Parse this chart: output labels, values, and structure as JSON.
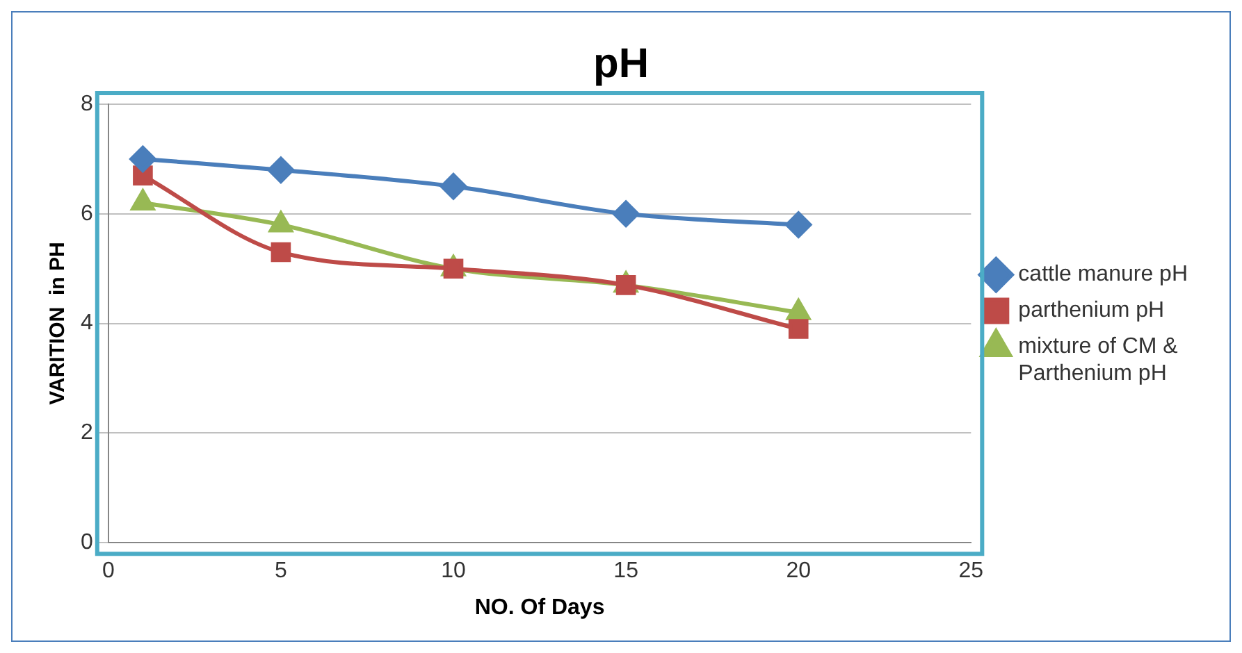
{
  "chart_data": {
    "type": "line",
    "title": "pH",
    "xlabel": "NO. Of Days",
    "ylabel": "VARITION  in PH",
    "x": [
      1,
      5,
      10,
      15,
      20
    ],
    "series": [
      {
        "name": "cattle manure pH",
        "color": "#4a7ebb",
        "marker": "diamond",
        "values": [
          7.0,
          6.8,
          6.5,
          6.0,
          5.8
        ]
      },
      {
        "name": "parthenium pH",
        "color": "#be4b48",
        "marker": "square",
        "values": [
          6.7,
          5.3,
          5.0,
          4.7,
          3.9
        ]
      },
      {
        "name": "mixture of CM & Parthenium pH",
        "color": "#98b954",
        "marker": "triangle",
        "values": [
          6.2,
          5.8,
          5.0,
          4.7,
          4.2
        ]
      }
    ],
    "xlim": [
      0,
      25
    ],
    "xticks": [
      0,
      5,
      10,
      15,
      20,
      25
    ],
    "ylim": [
      0,
      8
    ],
    "yticks": [
      0,
      2,
      4,
      6,
      8
    ],
    "grid": "y",
    "legend": "right"
  }
}
